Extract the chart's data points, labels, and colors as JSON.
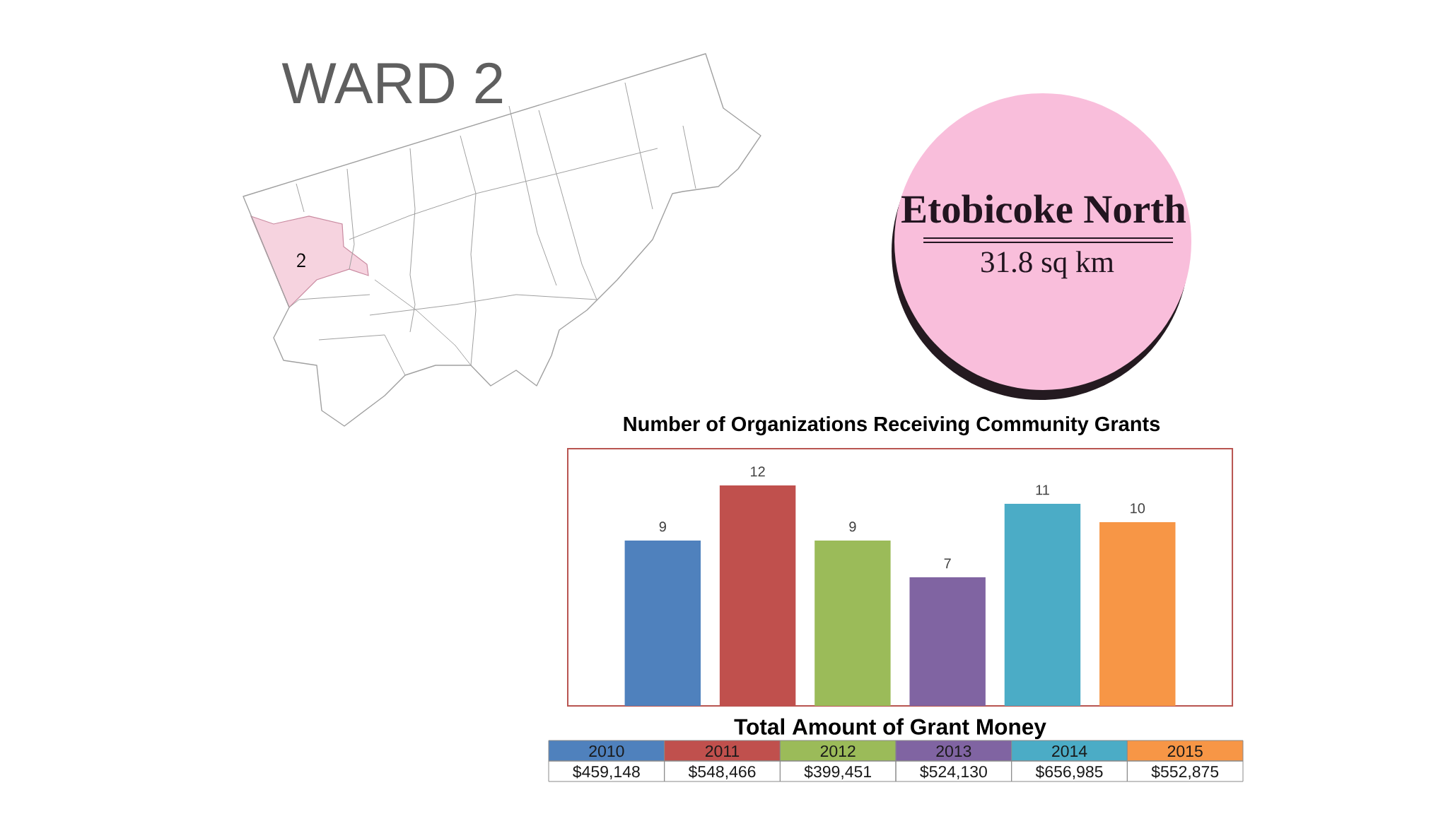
{
  "chart_data": [
    {
      "type": "other",
      "title": "WARD 2",
      "annotations": [
        "2",
        "Etobicoke North",
        "31.8 sq km"
      ]
    },
    {
      "type": "bar",
      "title": "Number of Organizations Receiving Community Grants",
      "categories": [
        "2010",
        "2011",
        "2012",
        "2013",
        "2014",
        "2015"
      ],
      "values": [
        9,
        12,
        9,
        7,
        11,
        10
      ],
      "colors": [
        "#4f81bd",
        "#c0504d",
        "#9bbb59",
        "#8064a2",
        "#4bacc6",
        "#f79646"
      ],
      "ylim": [
        0,
        14
      ],
      "data_labels": true,
      "tick_labels": "x"
    },
    {
      "type": "other",
      "title": "Total Amount of Grant Money",
      "annotations": [
        "$459,148",
        "$548,466",
        "$399,451",
        "$524,130",
        "$656,985",
        "$552,875"
      ]
    }
  ]
}
